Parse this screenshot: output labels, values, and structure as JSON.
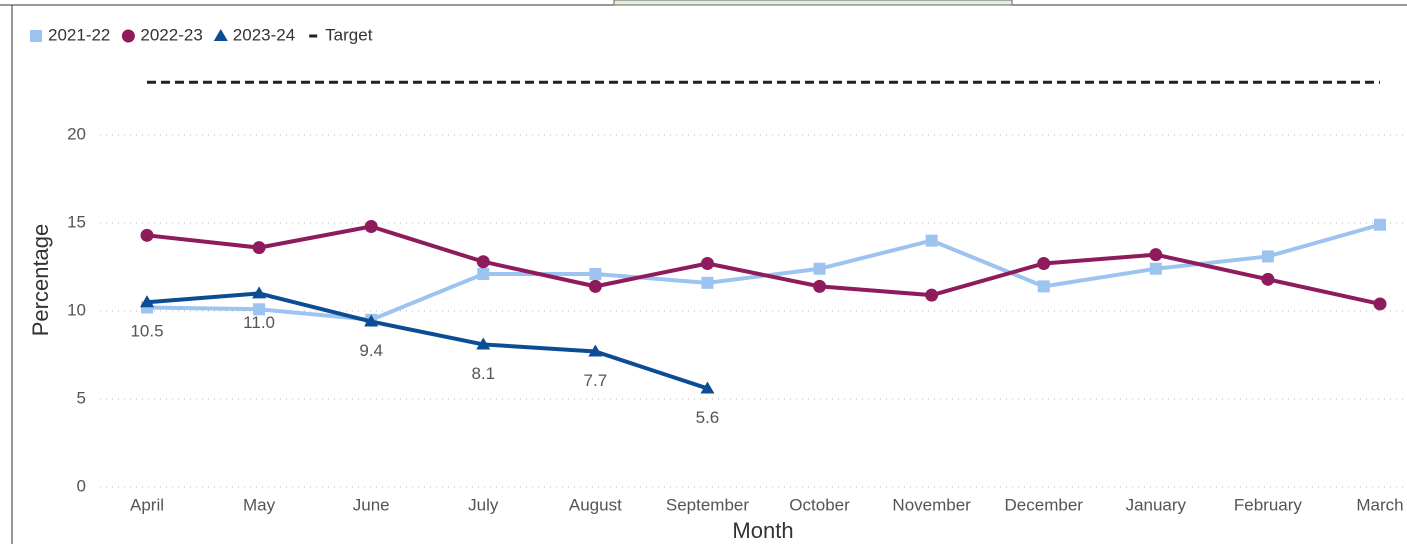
{
  "chart_data": {
    "type": "line",
    "x_label": "Month",
    "y_label": "Percentage",
    "categories": [
      "April",
      "May",
      "June",
      "July",
      "August",
      "September",
      "October",
      "November",
      "December",
      "January",
      "February",
      "March"
    ],
    "series": [
      {
        "name": "2021-22",
        "color": "#9dc3f0",
        "marker": "square",
        "values": [
          10.2,
          10.1,
          9.5,
          12.1,
          12.1,
          11.6,
          12.4,
          14.0,
          11.4,
          12.4,
          13.1,
          14.9
        ]
      },
      {
        "name": "2022-23",
        "color": "#8e1c5c",
        "marker": "circle",
        "values": [
          14.3,
          13.6,
          14.8,
          12.8,
          11.4,
          12.7,
          11.4,
          10.9,
          12.7,
          13.2,
          11.8,
          10.4
        ]
      },
      {
        "name": "2023-24",
        "color": "#0a4d94",
        "marker": "triangle",
        "values": [
          10.5,
          11.0,
          9.4,
          8.1,
          7.7,
          5.6,
          null,
          null,
          null,
          null,
          null,
          null
        ],
        "value_labels": [
          "10.5",
          "11.0",
          "9.4",
          "8.1",
          "7.7",
          "5.6",
          null,
          null,
          null,
          null,
          null,
          null
        ]
      },
      {
        "name": "Target",
        "color": "#222222",
        "marker": "none",
        "dashed": true,
        "values": [
          23,
          23,
          23,
          23,
          23,
          23,
          23,
          23,
          23,
          23,
          23,
          23
        ]
      }
    ],
    "ylim": [
      0,
      24
    ],
    "yticks": [
      0,
      5,
      10,
      15,
      20
    ],
    "grid": true,
    "legend": "top-left"
  }
}
